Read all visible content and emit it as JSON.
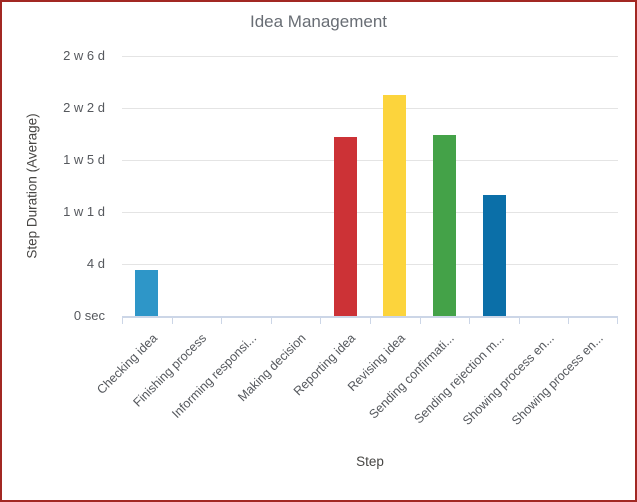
{
  "window": {
    "background": "#ffffff",
    "border_color": "#a22823"
  },
  "colors": {
    "gridline": "#e4e4e4",
    "axis_line": "#ccd6e7",
    "title_text": "#686d74",
    "axis_title_text": "#474644",
    "tick_label_text": "#55585d"
  },
  "chart_data": {
    "type": "bar",
    "title": "Idea Management",
    "xlabel": "Step",
    "ylabel": "Step Duration (Average)",
    "legend": "none",
    "grid": "horizontal",
    "x_labels_rotation_deg": -45,
    "value_unit": "days",
    "categories": [
      "Checking idea",
      "Finishing process",
      "Informing responsi...",
      "Making decision",
      "Reporting idea",
      "Revising idea",
      "Sending confirmati...",
      "Sending rejection m...",
      "Showing process en...",
      "Showing process en..."
    ],
    "series": [
      {
        "name": "Step Duration (Average)",
        "values": [
          3.5,
          0,
          0,
          0,
          13.8,
          17,
          13.9,
          9.3,
          0,
          0
        ]
      }
    ],
    "bar_colors": [
      "#2e96c8",
      "",
      "",
      "",
      "#cc3236",
      "#fcd43c",
      "#44a248",
      "#0b6fa8",
      "",
      ""
    ],
    "y_ticks": [
      {
        "label": "0 sec",
        "days": 0
      },
      {
        "label": "4 d",
        "days": 4
      },
      {
        "label": "1 w 1 d",
        "days": 8
      },
      {
        "label": "1 w 5 d",
        "days": 12
      },
      {
        "label": "2 w 2 d",
        "days": 16
      },
      {
        "label": "2 w 6 d",
        "days": 20
      }
    ],
    "ylim": [
      0,
      20.5
    ]
  }
}
